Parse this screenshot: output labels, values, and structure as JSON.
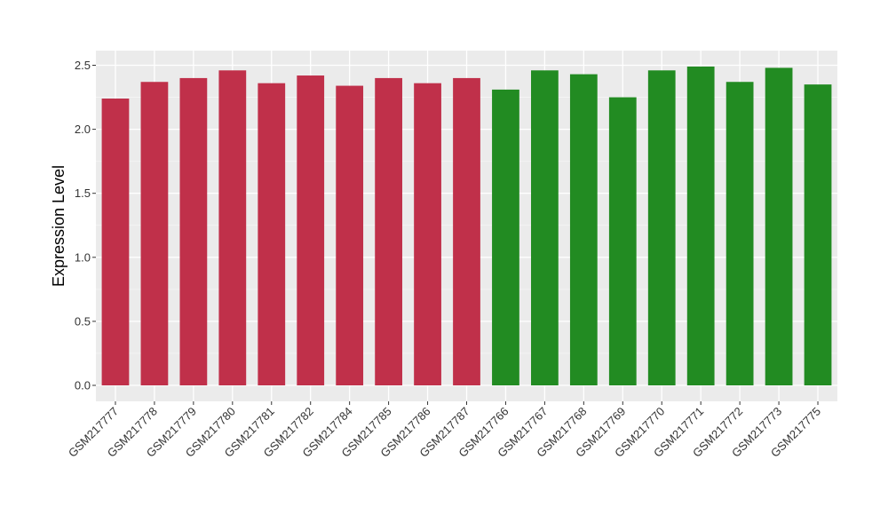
{
  "chart_data": {
    "type": "bar",
    "title": "",
    "xlabel": "",
    "ylabel": "Expression Level",
    "ylim": [
      0,
      2.55
    ],
    "yticks": [
      "0.0",
      "0.5",
      "1.0",
      "1.5",
      "2.0",
      "2.5"
    ],
    "grid": true,
    "categories": [
      "GSM217777",
      "GSM217778",
      "GSM217779",
      "GSM217780",
      "GSM217781",
      "GSM217782",
      "GSM217784",
      "GSM217785",
      "GSM217786",
      "GSM217787",
      "GSM217766",
      "GSM217767",
      "GSM217768",
      "GSM217769",
      "GSM217770",
      "GSM217771",
      "GSM217772",
      "GSM217773",
      "GSM217775"
    ],
    "values": [
      2.24,
      2.37,
      2.4,
      2.46,
      2.36,
      2.42,
      2.34,
      2.4,
      2.36,
      2.4,
      2.31,
      2.46,
      2.43,
      2.25,
      2.46,
      2.49,
      2.37,
      2.48,
      2.35
    ],
    "bar_colors": [
      "#c0304a",
      "#c0304a",
      "#c0304a",
      "#c0304a",
      "#c0304a",
      "#c0304a",
      "#c0304a",
      "#c0304a",
      "#c0304a",
      "#c0304a",
      "#228b22",
      "#228b22",
      "#228b22",
      "#228b22",
      "#228b22",
      "#228b22",
      "#228b22",
      "#228b22",
      "#228b22"
    ],
    "panel_background": "#ebebeb"
  }
}
